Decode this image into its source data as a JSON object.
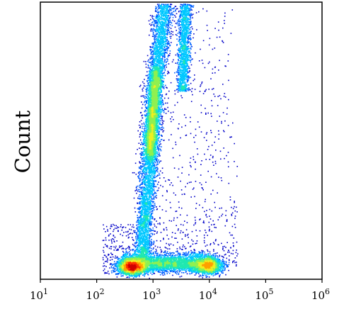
{
  "chart_data": {
    "type": "scatter",
    "title": "",
    "xlabel": "",
    "ylabel": "Count",
    "x_scale": "log",
    "xlim": [
      10,
      1000000
    ],
    "ylim": [
      0,
      100
    ],
    "grid": false,
    "legend": "none",
    "x_ticks": [
      {
        "value": 10,
        "base": "10",
        "exp": "1"
      },
      {
        "value": 100,
        "base": "10",
        "exp": "2"
      },
      {
        "value": 1000,
        "base": "10",
        "exp": "3"
      },
      {
        "value": 10000,
        "base": "10",
        "exp": "4"
      },
      {
        "value": 100000,
        "base": "10",
        "exp": "5"
      },
      {
        "value": 1000000,
        "base": "10",
        "exp": "6"
      }
    ],
    "colormap": [
      "#0000c8",
      "#0060ff",
      "#00c8ff",
      "#20e8b0",
      "#90f050",
      "#f0f020",
      "#ffa000",
      "#ff3000",
      "#d00000"
    ],
    "populations": [
      {
        "name": "main-diagonal-upper",
        "x": [
          800,
          1200
        ],
        "y": [
          55,
          82
        ]
      },
      {
        "name": "main-diagonal-lower",
        "x": [
          600,
          1000
        ],
        "y": [
          30,
          55
        ]
      },
      {
        "name": "stem",
        "x": [
          500,
          900
        ],
        "y": [
          10,
          30
        ]
      },
      {
        "name": "bottom-left-hotspot",
        "x": [
          350,
          500
        ],
        "y": [
          4,
          6
        ]
      },
      {
        "name": "bottom-right-cluster",
        "x": [
          5000,
          15000
        ],
        "y": [
          4,
          8
        ]
      },
      {
        "name": "upper-right-streak",
        "x": [
          2500,
          4500
        ],
        "y": [
          70,
          99
        ]
      }
    ]
  }
}
